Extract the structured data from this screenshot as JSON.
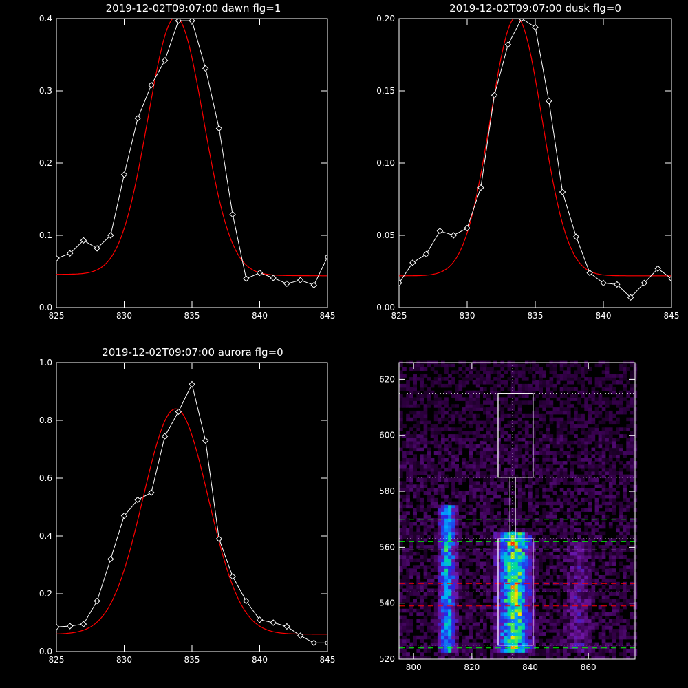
{
  "chart_data": [
    {
      "type": "line",
      "title": "2019-12-02T09:07:00 dawn flg=1",
      "xlim": [
        825,
        845
      ],
      "ylim": [
        0.0,
        0.4
      ],
      "xticks": [
        "825",
        "830",
        "835",
        "840",
        "845"
      ],
      "yticks": [
        "0.0",
        "0.1",
        "0.2",
        "0.3",
        "0.4"
      ],
      "series": [
        {
          "style": "measured",
          "color": "#ffffff",
          "marker": "diamond",
          "x": [
            825,
            826,
            827,
            828,
            829,
            830,
            831,
            832,
            833,
            834,
            835,
            836,
            837,
            838,
            839,
            840,
            841,
            842,
            843,
            844,
            845
          ],
          "y": [
            0.068,
            0.075,
            0.093,
            0.082,
            0.1,
            0.184,
            0.262,
            0.308,
            0.342,
            0.397,
            0.397,
            0.331,
            0.248,
            0.129,
            0.04,
            0.048,
            0.041,
            0.033,
            0.038,
            0.031,
            0.07
          ]
        },
        {
          "style": "fit",
          "color": "#ff0000",
          "gaussian": {
            "amplitude": 0.357,
            "center": 833.8,
            "sigma": 2.05,
            "offset": 0.046,
            "slope": -0.0001
          }
        }
      ]
    },
    {
      "type": "line",
      "title": "2019-12-02T09:07:00 dusk flg=0",
      "xlim": [
        825,
        845
      ],
      "ylim": [
        0.0,
        0.2
      ],
      "xticks": [
        "825",
        "830",
        "835",
        "840",
        "845"
      ],
      "yticks": [
        "0.00",
        "0.05",
        "0.10",
        "0.15",
        "0.20"
      ],
      "series": [
        {
          "style": "measured",
          "color": "#ffffff",
          "marker": "diamond",
          "x": [
            825,
            826,
            827,
            828,
            829,
            830,
            831,
            832,
            833,
            834,
            835,
            836,
            837,
            838,
            839,
            840,
            841,
            842,
            843,
            844,
            845
          ],
          "y": [
            0.017,
            0.031,
            0.037,
            0.053,
            0.05,
            0.055,
            0.083,
            0.147,
            0.182,
            0.2,
            0.194,
            0.143,
            0.08,
            0.049,
            0.024,
            0.017,
            0.016,
            0.007,
            0.017,
            0.027,
            0.02
          ]
        },
        {
          "style": "fit",
          "color": "#ff0000",
          "gaussian": {
            "amplitude": 0.179,
            "center": 833.6,
            "sigma": 1.9,
            "offset": 0.022,
            "slope": 0.0
          }
        }
      ]
    },
    {
      "type": "line",
      "title": "2019-12-02T09:07:00 aurora flg=0",
      "xlim": [
        825,
        845
      ],
      "ylim": [
        0.0,
        1.0
      ],
      "xticks": [
        "825",
        "830",
        "835",
        "840",
        "845"
      ],
      "yticks": [
        "0.0",
        "0.2",
        "0.4",
        "0.6",
        "0.8",
        "1.0"
      ],
      "series": [
        {
          "style": "measured",
          "color": "#ffffff",
          "marker": "diamond",
          "x": [
            825,
            826,
            827,
            828,
            829,
            830,
            831,
            832,
            833,
            834,
            835,
            836,
            837,
            838,
            839,
            840,
            841,
            842,
            843,
            844,
            845
          ],
          "y": [
            0.085,
            0.088,
            0.095,
            0.175,
            0.32,
            0.47,
            0.525,
            0.55,
            0.745,
            0.83,
            0.925,
            0.73,
            0.39,
            0.26,
            0.175,
            0.11,
            0.1,
            0.087,
            0.055,
            0.03,
            0.03
          ]
        },
        {
          "style": "fit",
          "color": "#ff0000",
          "gaussian": {
            "amplitude": 0.78,
            "center": 833.8,
            "sigma": 2.4,
            "offset": 0.06,
            "slope": 0.0
          }
        }
      ]
    },
    {
      "type": "heatmap",
      "title": "",
      "xlim": [
        795,
        876
      ],
      "ylim": [
        520,
        626
      ],
      "xticks": [
        "800",
        "820",
        "840",
        "860"
      ],
      "yticks": [
        "520",
        "540",
        "560",
        "580",
        "600",
        "620"
      ],
      "colormap": "rainbow",
      "bands": [
        {
          "x_center": 811,
          "width": 6,
          "y_from": 522,
          "y_to": 575,
          "intensity": 0.5
        },
        {
          "x_center": 834,
          "width": 11,
          "y_from": 522,
          "y_to": 565,
          "intensity": 0.7
        },
        {
          "x_center": 856,
          "width": 8,
          "y_from": 522,
          "y_to": 562,
          "intensity": 0.15
        }
      ],
      "overlays": {
        "dotted_vertical_x": [
          834
        ],
        "dotted_horizontal_y": [
          615,
          585,
          563,
          544,
          525
        ],
        "dashed_white_y": [
          589,
          559
        ],
        "dashed_green_y": [
          570,
          562,
          524
        ],
        "dashed_red_y": [
          547,
          539
        ],
        "boxes": [
          {
            "x": [
              829,
              841
            ],
            "y": [
              585,
              615
            ]
          },
          {
            "x": [
              829,
              841
            ],
            "y": [
              525,
              563
            ]
          }
        ]
      }
    }
  ]
}
